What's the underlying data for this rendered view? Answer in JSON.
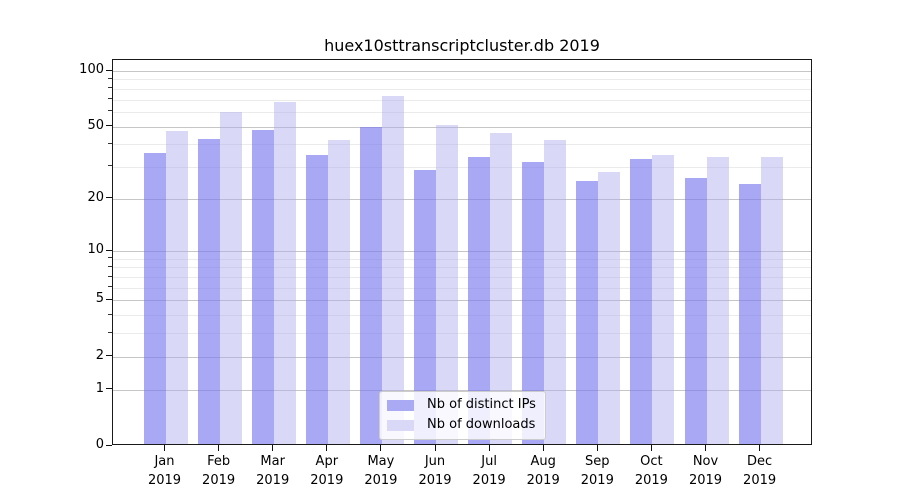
{
  "title": "huex10sttranscriptcluster.db 2019",
  "chart_data": {
    "type": "bar",
    "title": "huex10sttranscriptcluster.db 2019",
    "xlabel": "",
    "ylabel": "",
    "y_scale": "log1p",
    "ylim": [
      0,
      115
    ],
    "grid": true,
    "y_major_ticks": [
      100,
      50,
      20,
      10,
      5,
      2,
      1,
      0
    ],
    "y_minor_gridlines": [
      3,
      4,
      6,
      7,
      8,
      9,
      30,
      40,
      60,
      70,
      80,
      90
    ],
    "categories": [
      {
        "month": "Jan",
        "year": "2019"
      },
      {
        "month": "Feb",
        "year": "2019"
      },
      {
        "month": "Mar",
        "year": "2019"
      },
      {
        "month": "Apr",
        "year": "2019"
      },
      {
        "month": "May",
        "year": "2019"
      },
      {
        "month": "Jun",
        "year": "2019"
      },
      {
        "month": "Jul",
        "year": "2019"
      },
      {
        "month": "Aug",
        "year": "2019"
      },
      {
        "month": "Sep",
        "year": "2019"
      },
      {
        "month": "Oct",
        "year": "2019"
      },
      {
        "month": "Nov",
        "year": "2019"
      },
      {
        "month": "Dec",
        "year": "2019"
      }
    ],
    "series": [
      {
        "name": "Nb of distinct IPs",
        "color": "#a9a9f4",
        "fill": "rgba(121,121,238,0.65)",
        "values": [
          36,
          43,
          48,
          35,
          50,
          29,
          34,
          32,
          25,
          33,
          26,
          24
        ]
      },
      {
        "name": "Nb of downloads",
        "color": "#d9d9f7",
        "fill": "rgba(171,171,238,0.45)",
        "values": [
          47,
          60,
          68,
          42,
          73,
          51,
          46,
          42,
          28,
          35,
          34,
          34
        ]
      }
    ],
    "legend": {
      "position": "lower center",
      "entries": [
        "Nb of distinct IPs",
        "Nb of downloads"
      ]
    }
  }
}
